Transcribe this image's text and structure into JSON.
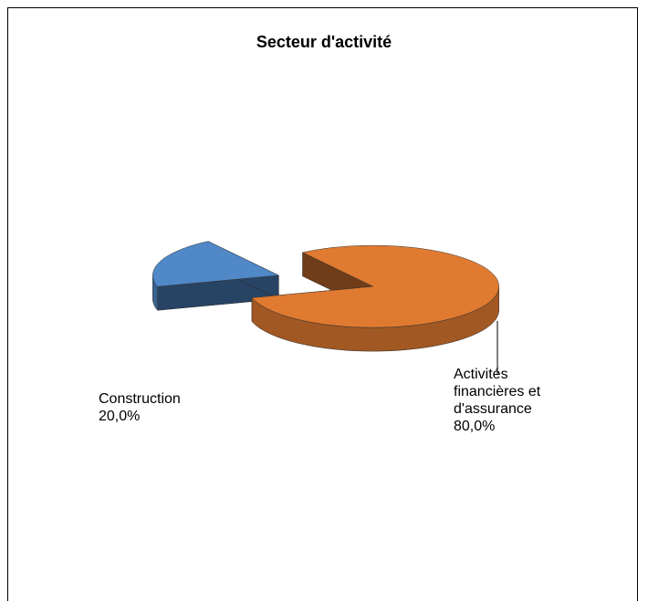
{
  "chart_data": {
    "type": "pie3d",
    "title": "Secteur d'activité",
    "categories": [
      "Construction",
      "Activités financières et d'assurance"
    ],
    "values": [
      20,
      80
    ],
    "value_labels": [
      "20,0%",
      "80,0%"
    ],
    "colors": [
      "#5088c8",
      "#e07a30"
    ]
  }
}
